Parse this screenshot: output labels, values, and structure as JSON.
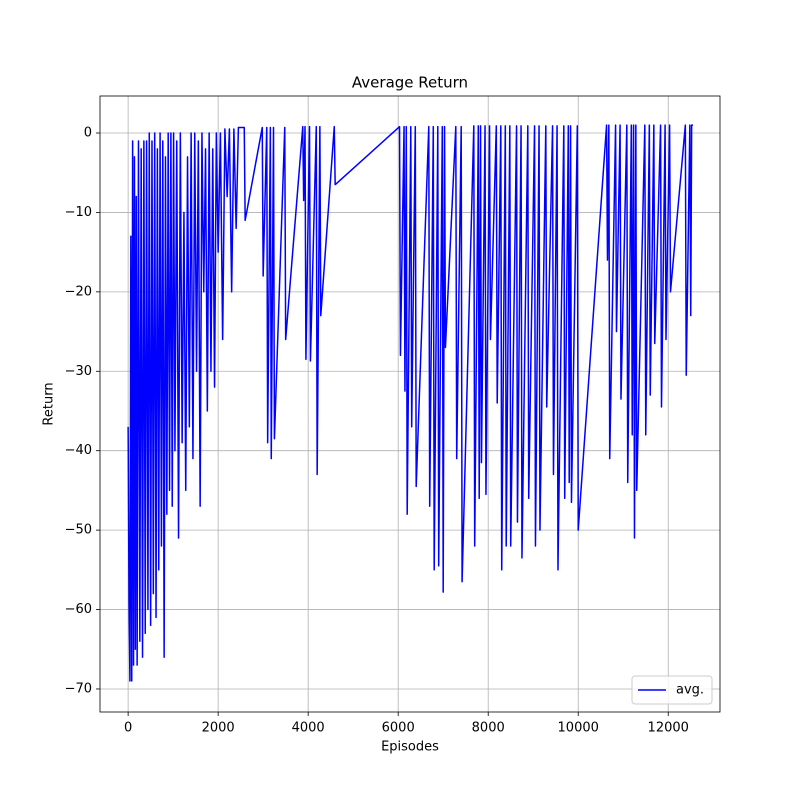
{
  "chart_data": {
    "type": "line",
    "title": "Average Return",
    "x_label": "Episodes",
    "y_label": "Return",
    "x": [
      0,
      20,
      40,
      60,
      80,
      100,
      120,
      140,
      160,
      180,
      200,
      230,
      260,
      290,
      320,
      350,
      380,
      410,
      440,
      470,
      500,
      530,
      560,
      590,
      620,
      650,
      680,
      710,
      740,
      770,
      800,
      830,
      860,
      890,
      920,
      950,
      980,
      1010,
      1040,
      1080,
      1120,
      1160,
      1200,
      1240,
      1280,
      1320,
      1360,
      1400,
      1440,
      1480,
      1520,
      1560,
      1600,
      1640,
      1680,
      1720,
      1760,
      1800,
      1840,
      1880,
      1920,
      1960,
      2000,
      2050,
      2100,
      2150,
      2200,
      2250,
      2300,
      2350,
      2400,
      2450,
      2580,
      2600,
      2980,
      3000,
      3080,
      3100,
      3160,
      3180,
      3230,
      3250,
      3480,
      3500,
      3880,
      3900,
      3930,
      3950,
      4030,
      4050,
      4180,
      4200,
      4260,
      4280,
      4580,
      4600,
      6030,
      6050,
      6130,
      6150,
      6180,
      6200,
      6280,
      6300,
      6380,
      6400,
      6680,
      6700,
      6780,
      6800,
      6880,
      6900,
      6980,
      7000,
      7030,
      7050,
      7280,
      7300,
      7400,
      7420,
      7680,
      7700,
      7780,
      7800,
      7830,
      7850,
      7930,
      7950,
      8030,
      8050,
      8180,
      8200,
      8280,
      8300,
      8380,
      8400,
      8480,
      8500,
      8630,
      8650,
      8730,
      8750,
      8880,
      8900,
      9030,
      9050,
      9130,
      9150,
      9280,
      9300,
      9430,
      9450,
      9530,
      9550,
      9680,
      9700,
      9780,
      9800,
      9830,
      9850,
      9980,
      10000,
      10630,
      10650,
      10680,
      10700,
      10830,
      10850,
      10930,
      10950,
      11080,
      11100,
      11180,
      11200,
      11230,
      11250,
      11280,
      11300,
      11480,
      11500,
      11580,
      11600,
      11680,
      11700,
      11830,
      11850,
      11930,
      11950,
      12030,
      12050,
      12380,
      12400,
      12480,
      12500,
      12520,
      12550
    ],
    "series": [
      {
        "name": "avg.",
        "color": "#0000ff",
        "values": [
          -37,
          -59,
          -69,
          -13,
          -69,
          -1,
          -67,
          -3,
          -65,
          -8,
          -67,
          -1,
          -64,
          -2,
          -66,
          -1,
          -63,
          -1,
          -60,
          0,
          -62,
          -1,
          -58,
          0,
          -61,
          -2,
          -55,
          0,
          -52,
          -1,
          -66,
          -3,
          -48,
          0,
          -45,
          0,
          -47,
          0,
          -40,
          -1,
          -51,
          0,
          -39,
          -10,
          -45,
          -3,
          -37,
          0,
          -41,
          0,
          -30,
          -1,
          -47,
          0,
          -20,
          -2,
          -35,
          0,
          -30,
          -2,
          -32,
          0,
          -15,
          0,
          -26,
          0.5,
          -8,
          0.5,
          -20,
          0.5,
          -12,
          0.7,
          0.7,
          -11,
          0.7,
          -18,
          0.7,
          -39,
          0.7,
          -41,
          0.7,
          -38.5,
          0.7,
          -26,
          0.8,
          -8.5,
          0.8,
          -28.5,
          0.8,
          -28.7,
          0.8,
          -43,
          0.8,
          -23,
          0.8,
          -6.5,
          0.8,
          -28,
          0.8,
          -32.5,
          0.8,
          -48,
          0.8,
          -37,
          0.8,
          -44.5,
          0.8,
          -47,
          0.8,
          -55,
          0.8,
          -54.5,
          0.8,
          -57.8,
          0.8,
          -27,
          0.8,
          -41,
          0.8,
          -56.5,
          0.9,
          -52,
          0.9,
          -46,
          0.9,
          -41.5,
          0.9,
          -45.5,
          0.9,
          -26,
          0.9,
          -34,
          0.9,
          -55,
          0.9,
          -52,
          0.9,
          -52,
          0.9,
          -49,
          0.9,
          -53.5,
          0.9,
          -46,
          0.9,
          -52,
          0.9,
          -50,
          0.9,
          -34.5,
          0.9,
          -43,
          0.9,
          -55,
          0.9,
          -46,
          0.9,
          -44,
          0.9,
          -46.5,
          0.9,
          -50,
          1,
          -16,
          1,
          -41,
          1,
          -25,
          1,
          -33.5,
          1,
          -44,
          1,
          -38,
          1,
          -51,
          1,
          -45,
          1,
          -38,
          1,
          -33,
          1,
          -26.5,
          1,
          -34.5,
          1,
          -26,
          1,
          -20,
          1,
          -30.5,
          1,
          -23,
          1,
          1
        ]
      }
    ],
    "xlim": [
      -625,
      13150
    ],
    "ylim": [
      -72.9,
      4.66
    ],
    "xticks": [
      0,
      2000,
      4000,
      6000,
      8000,
      10000,
      12000
    ],
    "yticks": [
      0,
      {
        "value": -10,
        "label": "−10"
      },
      {
        "value": -20,
        "label": "−20"
      },
      {
        "value": -30,
        "label": "−30"
      },
      {
        "value": -40,
        "label": "−40"
      },
      {
        "value": -50,
        "label": "−50"
      },
      {
        "value": -60,
        "label": "−60"
      },
      {
        "value": -70,
        "label": "−70"
      }
    ],
    "grid": true,
    "legend": "lower right"
  }
}
